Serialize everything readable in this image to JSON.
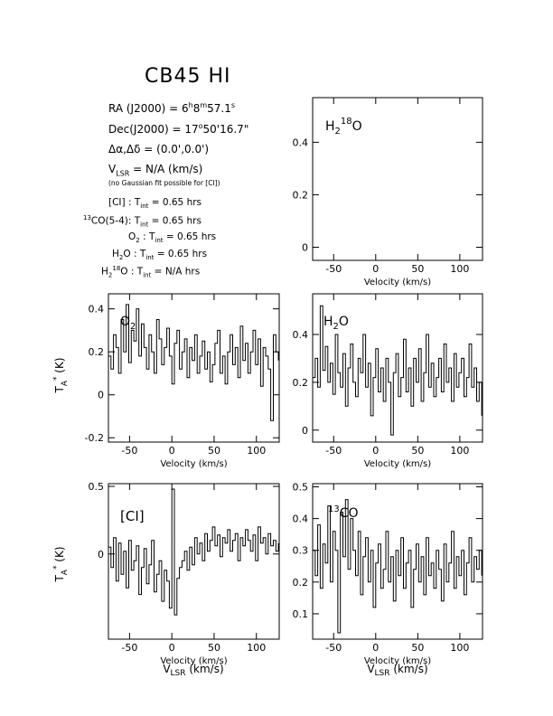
{
  "header": {
    "title": "CB45  HI",
    "ra": "RA (J2000) = 6h8m57.1s",
    "dec": "Dec(J2000) = 17°50'16.7\"",
    "offset": "Δα,Δδ = (0.0',0.0')",
    "vlsr": "VLSR = N/A (km/s)",
    "note": "(no Gaussian fit possible for [CI])"
  },
  "integration_times": [
    {
      "label": "[CI] : Tint = 0.65 hrs"
    },
    {
      "label": "13CO(5-4): Tint = 0.65 hrs"
    },
    {
      "label": "O2 : Tint = 0.65 hrs"
    },
    {
      "label": "H2O : Tint = 0.65 hrs"
    },
    {
      "label": "H218O : Tint = N/A hrs"
    }
  ],
  "chart_data": [
    {
      "type": "line",
      "panel": "top-right",
      "label": "H2 18O",
      "xlabel": "Velocity (km/s)",
      "ylabel": "",
      "xlim": [
        -75,
        127
      ],
      "ylim": [
        -0.05,
        0.57
      ],
      "yticks": [
        0,
        0.2,
        0.4
      ],
      "xticks": [
        -50,
        0,
        50,
        100
      ],
      "series": [
        {
          "x": [],
          "y": []
        }
      ]
    },
    {
      "type": "line",
      "panel": "middle-left",
      "label": "O2",
      "xlabel": "Velocity (km/s)",
      "ylabel": "TA* (K)",
      "xlim": [
        -75,
        127
      ],
      "ylim": [
        -0.22,
        0.47
      ],
      "yticks": [
        -0.2,
        0,
        0.2,
        0.4
      ],
      "xticks": [
        -50,
        0,
        50,
        100
      ],
      "series": [
        {
          "x": [
            -75,
            -72,
            -69,
            -66,
            -63,
            -60,
            -57,
            -54,
            -51,
            -48,
            -45,
            -42,
            -39,
            -36,
            -33,
            -30,
            -27,
            -24,
            -21,
            -18,
            -15,
            -12,
            -9,
            -6,
            -3,
            0,
            3,
            6,
            9,
            12,
            15,
            18,
            21,
            24,
            27,
            30,
            33,
            36,
            39,
            42,
            45,
            48,
            51,
            54,
            57,
            60,
            63,
            66,
            69,
            72,
            75,
            78,
            81,
            84,
            87,
            90,
            93,
            96,
            99,
            102,
            105,
            108,
            111,
            114,
            117,
            120,
            123,
            126
          ],
          "y": [
            0.18,
            0.12,
            0.28,
            0.22,
            0.1,
            0.35,
            0.2,
            0.42,
            0.15,
            0.3,
            0.25,
            0.4,
            0.18,
            0.33,
            0.22,
            0.12,
            0.28,
            0.2,
            0.1,
            0.35,
            0.26,
            0.14,
            0.22,
            0.31,
            0.18,
            0.05,
            0.24,
            0.3,
            0.12,
            0.2,
            0.26,
            0.08,
            0.22,
            0.16,
            0.28,
            0.1,
            0.18,
            0.25,
            0.12,
            0.2,
            0.06,
            0.14,
            0.24,
            0.3,
            0.1,
            0.18,
            0.05,
            0.2,
            0.28,
            0.14,
            0.22,
            0.08,
            0.32,
            0.16,
            0.24,
            0.1,
            0.2,
            0.3,
            0.14,
            0.26,
            0.04,
            0.22,
            0.18,
            0.12,
            -0.12,
            0.28,
            0.2,
            0.16
          ]
        }
      ]
    },
    {
      "type": "line",
      "panel": "middle-right",
      "label": "H2O",
      "xlabel": "Velocity (km/s)",
      "ylabel": "",
      "xlim": [
        -75,
        127
      ],
      "ylim": [
        -0.05,
        0.57
      ],
      "yticks": [
        0,
        0.2,
        0.4
      ],
      "xticks": [
        -50,
        0,
        50,
        100
      ],
      "series": [
        {
          "x": [
            -75,
            -72,
            -69,
            -66,
            -63,
            -60,
            -57,
            -54,
            -51,
            -48,
            -45,
            -42,
            -39,
            -36,
            -33,
            -30,
            -27,
            -24,
            -21,
            -18,
            -15,
            -12,
            -9,
            -6,
            -3,
            0,
            3,
            6,
            9,
            12,
            15,
            18,
            21,
            24,
            27,
            30,
            33,
            36,
            39,
            42,
            45,
            48,
            51,
            54,
            57,
            60,
            63,
            66,
            69,
            72,
            75,
            78,
            81,
            84,
            87,
            90,
            93,
            96,
            99,
            102,
            105,
            108,
            111,
            114,
            117,
            120,
            123,
            126
          ],
          "y": [
            0.22,
            0.3,
            0.18,
            0.52,
            0.25,
            0.35,
            0.2,
            0.28,
            0.15,
            0.4,
            0.24,
            0.18,
            0.32,
            0.1,
            0.26,
            0.36,
            0.2,
            0.14,
            0.3,
            0.24,
            0.4,
            0.18,
            0.28,
            0.06,
            0.22,
            0.34,
            0.16,
            0.26,
            0.12,
            0.3,
            0.2,
            -0.02,
            0.24,
            0.32,
            0.14,
            0.22,
            0.38,
            0.16,
            0.26,
            0.1,
            0.3,
            0.2,
            0.34,
            0.12,
            0.24,
            0.4,
            0.18,
            0.28,
            0.14,
            0.22,
            0.3,
            0.16,
            0.36,
            0.2,
            0.26,
            0.12,
            0.32,
            0.18,
            0.24,
            0.3,
            0.14,
            0.22,
            0.36,
            0.18,
            0.26,
            0.12,
            0.2,
            0.06
          ]
        }
      ]
    },
    {
      "type": "line",
      "panel": "bottom-left",
      "label": "[CI]",
      "xlabel": "Velocity (km/s)",
      "xlabel2": "VLSR (km/s)",
      "ylabel": "TA* (K)",
      "xlim": [
        -75,
        127
      ],
      "ylim": [
        -0.63,
        0.52
      ],
      "yticks": [
        0,
        0.5
      ],
      "xticks": [
        -50,
        0,
        50,
        100
      ],
      "series": [
        {
          "x": [
            -75,
            -72,
            -69,
            -66,
            -63,
            -60,
            -57,
            -54,
            -51,
            -48,
            -45,
            -42,
            -39,
            -36,
            -33,
            -30,
            -27,
            -24,
            -21,
            -18,
            -15,
            -12,
            -9,
            -6,
            -3,
            0,
            3,
            6,
            9,
            12,
            15,
            18,
            21,
            24,
            27,
            30,
            33,
            36,
            39,
            42,
            45,
            48,
            51,
            54,
            57,
            60,
            63,
            66,
            69,
            72,
            75,
            78,
            81,
            84,
            87,
            90,
            93,
            96,
            99,
            102,
            105,
            108,
            111,
            114,
            117,
            120,
            123,
            126
          ],
          "y": [
            0.05,
            -0.1,
            0.12,
            -0.2,
            0.08,
            -0.15,
            0.02,
            -0.25,
            0.1,
            -0.12,
            -0.05,
            0.06,
            -0.3,
            -0.1,
            0.04,
            -0.22,
            -0.08,
            0.1,
            -0.28,
            -0.15,
            -0.05,
            -0.35,
            -0.12,
            -0.2,
            -0.4,
            0.48,
            -0.45,
            -0.18,
            -0.1,
            -0.05,
            0.02,
            -0.12,
            0.05,
            -0.08,
            0.12,
            0.0,
            0.08,
            -0.05,
            0.15,
            0.02,
            0.1,
            0.2,
            0.06,
            0.14,
            -0.02,
            0.12,
            0.08,
            0.18,
            0.02,
            0.1,
            0.15,
            -0.05,
            0.12,
            0.06,
            0.18,
            0.1,
            0.02,
            0.14,
            -0.05,
            0.2,
            0.08,
            0.12,
            0.0,
            0.15,
            0.06,
            0.1,
            0.02,
            0.08
          ]
        }
      ]
    },
    {
      "type": "line",
      "panel": "bottom-right",
      "label": "13CO",
      "xlabel": "Velocity (km/s)",
      "xlabel2": "VLSR (km/s)",
      "ylabel": "",
      "xlim": [
        -75,
        127
      ],
      "ylim": [
        0.02,
        0.51
      ],
      "yticks": [
        0.1,
        0.2,
        0.3,
        0.4,
        0.5
      ],
      "xticks": [
        -50,
        0,
        50,
        100
      ],
      "series": [
        {
          "x": [
            -75,
            -72,
            -69,
            -66,
            -63,
            -60,
            -57,
            -54,
            -51,
            -48,
            -45,
            -42,
            -39,
            -36,
            -33,
            -30,
            -27,
            -24,
            -21,
            -18,
            -15,
            -12,
            -9,
            -6,
            -3,
            0,
            3,
            6,
            9,
            12,
            15,
            18,
            21,
            24,
            27,
            30,
            33,
            36,
            39,
            42,
            45,
            48,
            51,
            54,
            57,
            60,
            63,
            66,
            69,
            72,
            75,
            78,
            81,
            84,
            87,
            90,
            93,
            96,
            99,
            102,
            105,
            108,
            111,
            114,
            117,
            120,
            123,
            126
          ],
          "y": [
            0.3,
            0.22,
            0.38,
            0.18,
            0.32,
            0.26,
            0.44,
            0.2,
            0.36,
            0.3,
            0.04,
            0.42,
            0.28,
            0.46,
            0.24,
            0.4,
            0.3,
            0.22,
            0.36,
            0.16,
            0.28,
            0.34,
            0.2,
            0.3,
            0.12,
            0.26,
            0.32,
            0.18,
            0.24,
            0.36,
            0.2,
            0.28,
            0.14,
            0.3,
            0.22,
            0.34,
            0.18,
            0.26,
            0.3,
            0.12,
            0.24,
            0.32,
            0.2,
            0.28,
            0.16,
            0.34,
            0.22,
            0.26,
            0.18,
            0.3,
            0.24,
            0.14,
            0.32,
            0.2,
            0.26,
            0.36,
            0.18,
            0.28,
            0.22,
            0.3,
            0.16,
            0.26,
            0.34,
            0.2,
            0.28,
            0.24,
            0.3,
            0.22
          ]
        }
      ]
    }
  ]
}
